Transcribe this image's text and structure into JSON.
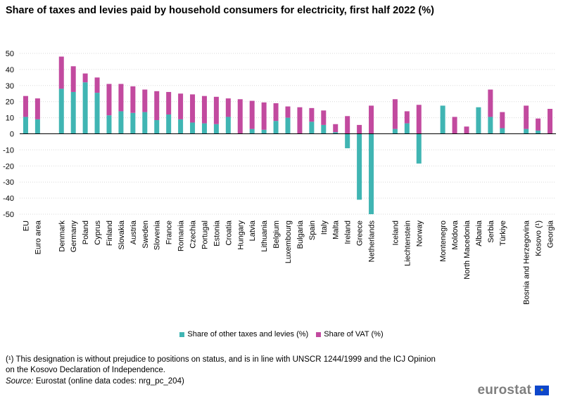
{
  "title": "Share of taxes and levies paid by household consumers for electricity, first half 2022 (%)",
  "legend": [
    {
      "label": "Share of other taxes and levies (%)",
      "color": "#40b5b3"
    },
    {
      "label": "Share of VAT (%)",
      "color": "#c24a9f"
    }
  ],
  "footnote": "(¹) This designation is without prejudice to positions on status, and is in line with UNSCR 1244/1999 and the ICJ Opinion on the Kosovo Declaration of Independence.",
  "source_label": "Source:",
  "source_text": " Eurostat (online data codes: nrg_pc_204)",
  "logo_text": "eurostat",
  "chart_data": {
    "type": "bar",
    "stacked": true,
    "title": "Share of taxes and levies paid by household consumers for electricity, first half 2022 (%)",
    "ylim": [
      -50,
      50
    ],
    "yticks": [
      50,
      40,
      30,
      20,
      10,
      0,
      -10,
      -20,
      -30,
      -40,
      -50
    ],
    "grid": true,
    "legend_position": "bottom",
    "categories": [
      "EU",
      "Euro area",
      "",
      "Denmark",
      "Germany",
      "Poland",
      "Cyprus",
      "Finland",
      "Slovakia",
      "Austria",
      "Sweden",
      "Slovenia",
      "France",
      "Romania",
      "Czechia",
      "Portugal",
      "Estonia",
      "Croatia",
      "Hungary",
      "Latvia",
      "Lithuania",
      "Belgium",
      "Luxembourg",
      "Bulgaria",
      "Spain",
      "Italy",
      "Malta",
      "Ireland",
      "Greece",
      "Netherlands",
      "",
      "Iceland",
      "Liechtenstein",
      "Norway",
      "",
      "Montenegro",
      "Moldova",
      "North Macedonia",
      "Albania",
      "Serbia",
      "Türkiye",
      "",
      "Bosnia and Herzegovina",
      "Kosovo (¹)",
      "Georgia"
    ],
    "series": [
      {
        "name": "Share of other taxes and levies (%)",
        "values": [
          10.5,
          9,
          null,
          28,
          26,
          32,
          25.5,
          11.5,
          14,
          13,
          13.5,
          8.5,
          12,
          9,
          7,
          6.5,
          6,
          10.5,
          0,
          3,
          2.5,
          8,
          10,
          0,
          7.5,
          5.5,
          1,
          -9,
          -41,
          -50,
          null,
          3,
          6.5,
          -18.5,
          null,
          17.5,
          0,
          0,
          16.5,
          10.5,
          3.5,
          null,
          3,
          2,
          0
        ]
      },
      {
        "name": "Share of VAT (%)",
        "values": [
          13,
          13,
          null,
          20,
          16,
          5.5,
          9.5,
          19.5,
          17,
          16.5,
          14,
          18,
          14,
          16,
          17.5,
          17,
          17,
          11.5,
          21.5,
          17.5,
          17,
          11,
          7,
          16.5,
          8.5,
          9,
          5,
          11,
          5.5,
          17.5,
          null,
          18.5,
          7.5,
          18,
          null,
          0,
          10.5,
          4.5,
          0,
          17,
          10,
          null,
          14.5,
          7.5,
          15.5
        ]
      }
    ]
  }
}
